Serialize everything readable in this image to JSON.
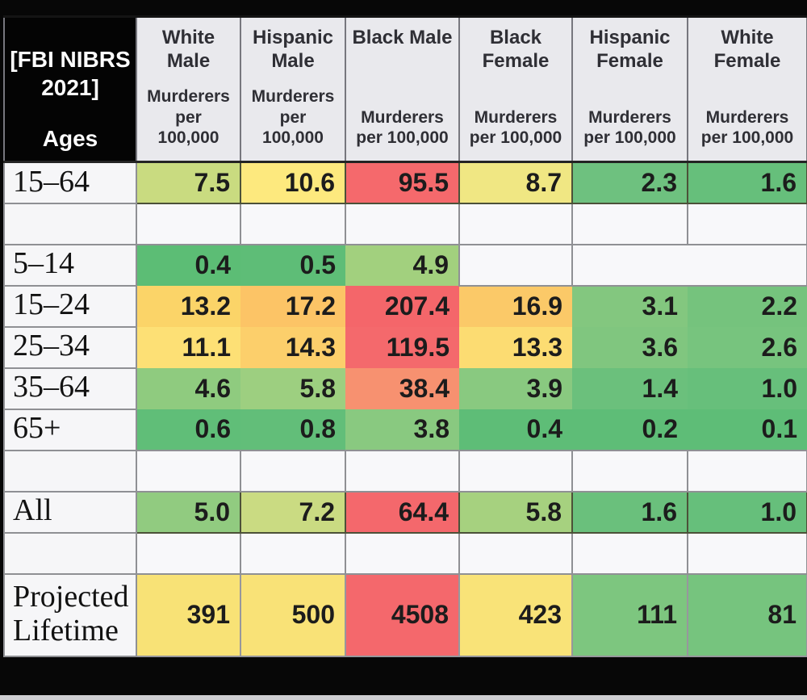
{
  "header": {
    "corner_source": "[FBI NIBRS 2021]",
    "corner_label": "Ages",
    "columns": [
      {
        "group": "White Male",
        "group_lines": [
          "White",
          "Male"
        ],
        "metric": "Murderers per 100,000",
        "metric_lines": [
          "Murderers",
          "per",
          "100,000"
        ]
      },
      {
        "group": "Hispanic Male",
        "group_lines": [
          "Hispanic",
          "Male"
        ],
        "metric": "Murderers per 100,000",
        "metric_lines": [
          "Murderers",
          "per",
          "100,000"
        ]
      },
      {
        "group": "Black Male",
        "group_lines": [
          "Black Male"
        ],
        "metric": "Murderers per 100,000",
        "metric_lines": [
          "Murderers",
          "per 100,000"
        ]
      },
      {
        "group": "Black Female",
        "group_lines": [
          "Black",
          "Female"
        ],
        "metric": "Murderers per 100,000",
        "metric_lines": [
          "Murderers",
          "per 100,000"
        ]
      },
      {
        "group": "Hispanic Female",
        "group_lines": [
          "Hispanic",
          "Female"
        ],
        "metric": "Murderers per 100,000",
        "metric_lines": [
          "Murderers",
          "per 100,000"
        ]
      },
      {
        "group": "White Female",
        "group_lines": [
          "White",
          "Female"
        ],
        "metric": "Murderers per 100,000",
        "metric_lines": [
          "Murderers",
          "per 100,000"
        ]
      }
    ]
  },
  "rows": [
    {
      "label": "15–64",
      "type": "line",
      "cells": [
        {
          "v": "7.5",
          "bg": "#c9db80"
        },
        {
          "v": "10.6",
          "bg": "#fde97e"
        },
        {
          "v": "95.5",
          "bg": "#f5696c"
        },
        {
          "v": "8.7",
          "bg": "#f0e783"
        },
        {
          "v": "2.3",
          "bg": "#6ec17f"
        },
        {
          "v": "1.6",
          "bg": "#66bf7b"
        }
      ]
    },
    {
      "label": "",
      "type": "spacer",
      "cells": []
    },
    {
      "label": "5–14",
      "type": "block",
      "cells": [
        {
          "v": "0.4",
          "bg": "#5cbd75"
        },
        {
          "v": "0.5",
          "bg": "#5ebd77"
        },
        {
          "v": "4.9",
          "bg": "#a2d07e"
        },
        {
          "v": "",
          "bg": ""
        },
        {
          "v": "",
          "bg": "",
          "span": 2
        }
      ]
    },
    {
      "label": "15–24",
      "type": "block",
      "cells": [
        {
          "v": "13.2",
          "bg": "#fbd468"
        },
        {
          "v": "17.2",
          "bg": "#fcc466"
        },
        {
          "v": "207.4",
          "bg": "#f4666a"
        },
        {
          "v": "16.9",
          "bg": "#fbc968"
        },
        {
          "v": "3.1",
          "bg": "#83c77f"
        },
        {
          "v": "2.2",
          "bg": "#75c37d"
        }
      ]
    },
    {
      "label": "25–34",
      "type": "block",
      "cells": [
        {
          "v": "11.1",
          "bg": "#fde075"
        },
        {
          "v": "14.3",
          "bg": "#fccf6b"
        },
        {
          "v": "119.5",
          "bg": "#f4696c"
        },
        {
          "v": "13.3",
          "bg": "#fcdc72"
        },
        {
          "v": "3.6",
          "bg": "#80c67f"
        },
        {
          "v": "2.6",
          "bg": "#77c47e"
        }
      ]
    },
    {
      "label": "35–64",
      "type": "block",
      "cells": [
        {
          "v": "4.6",
          "bg": "#8fcb7f"
        },
        {
          "v": "5.8",
          "bg": "#9dcf80"
        },
        {
          "v": "38.4",
          "bg": "#f79170"
        },
        {
          "v": "3.9",
          "bg": "#89c980"
        },
        {
          "v": "1.4",
          "bg": "#6bc07c"
        },
        {
          "v": "1.0",
          "bg": "#67bf7b"
        }
      ]
    },
    {
      "label": "65+",
      "type": "block",
      "cells": [
        {
          "v": "0.6",
          "bg": "#60be78"
        },
        {
          "v": "0.8",
          "bg": "#62be79"
        },
        {
          "v": "3.8",
          "bg": "#89c980"
        },
        {
          "v": "0.4",
          "bg": "#5ebd77"
        },
        {
          "v": "0.2",
          "bg": "#5ebd77"
        },
        {
          "v": "0.1",
          "bg": "#5ebd77"
        }
      ]
    },
    {
      "label": "",
      "type": "spacer",
      "cells": []
    },
    {
      "label": "All",
      "type": "line",
      "cells": [
        {
          "v": "5.0",
          "bg": "#91cb80"
        },
        {
          "v": "7.2",
          "bg": "#cadb82"
        },
        {
          "v": "64.4",
          "bg": "#f4686c"
        },
        {
          "v": "5.8",
          "bg": "#a6d17f"
        },
        {
          "v": "1.6",
          "bg": "#6ac07c"
        },
        {
          "v": "1.0",
          "bg": "#66bf7b"
        }
      ]
    },
    {
      "label": "",
      "type": "spacer",
      "cells": []
    },
    {
      "label": "Projected Lifetime",
      "type": "pl",
      "cells": [
        {
          "v": "391",
          "bg": "#f8e276"
        },
        {
          "v": "500",
          "bg": "#f9e277"
        },
        {
          "v": "4508",
          "bg": "#f4686c"
        },
        {
          "v": "423",
          "bg": "#f9e378"
        },
        {
          "v": "111",
          "bg": "#7dc67f"
        },
        {
          "v": "81",
          "bg": "#76c47e"
        }
      ]
    }
  ],
  "chart_data": {
    "type": "heatmap",
    "title": "[FBI NIBRS 2021] Murderers per 100,000 by age group and demographic",
    "columns": [
      "White Male",
      "Hispanic Male",
      "Black Male",
      "Black Female",
      "Hispanic Female",
      "White Female"
    ],
    "column_metric": "Murderers per 100,000",
    "row_axis_label": "Ages",
    "rows": [
      "15–64",
      "5–14",
      "15–24",
      "25–34",
      "35–64",
      "65+",
      "All",
      "Projected Lifetime"
    ],
    "values": [
      [
        7.5,
        10.6,
        95.5,
        8.7,
        2.3,
        1.6
      ],
      [
        0.4,
        0.5,
        4.9,
        null,
        null,
        null
      ],
      [
        13.2,
        17.2,
        207.4,
        16.9,
        3.1,
        2.2
      ],
      [
        11.1,
        14.3,
        119.5,
        13.3,
        3.6,
        2.6
      ],
      [
        4.6,
        5.8,
        38.4,
        3.9,
        1.4,
        1.0
      ],
      [
        0.6,
        0.8,
        3.8,
        0.4,
        0.2,
        0.1
      ],
      [
        5.0,
        7.2,
        64.4,
        5.8,
        1.6,
        1.0
      ],
      [
        391,
        500,
        4508,
        423,
        111,
        81
      ]
    ],
    "color_scale": {
      "low": "#63be7b",
      "mid": "#ffeb84",
      "high": "#f8696b"
    },
    "legend_position": "none",
    "grid": true
  }
}
